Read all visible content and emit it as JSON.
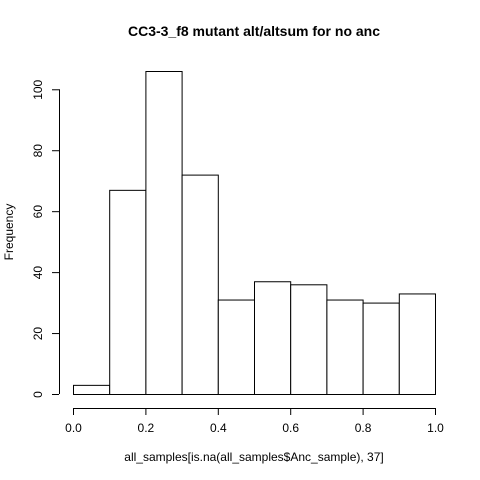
{
  "chart_data": {
    "type": "bar",
    "title": "CC3-3_f8 mutant alt/altsum for no anc",
    "xlabel": "all_samples[is.na(all_samples$Anc_sample), 37]",
    "ylabel": "Frequency",
    "bins": [
      {
        "from": 0.0,
        "to": 0.1,
        "value": 3
      },
      {
        "from": 0.1,
        "to": 0.2,
        "value": 67
      },
      {
        "from": 0.2,
        "to": 0.3,
        "value": 106
      },
      {
        "from": 0.3,
        "to": 0.4,
        "value": 72
      },
      {
        "from": 0.4,
        "to": 0.5,
        "value": 31
      },
      {
        "from": 0.5,
        "to": 0.6,
        "value": 37
      },
      {
        "from": 0.6,
        "to": 0.7,
        "value": 36
      },
      {
        "from": 0.7,
        "to": 0.8,
        "value": 31
      },
      {
        "from": 0.8,
        "to": 0.9,
        "value": 30
      },
      {
        "from": 0.9,
        "to": 1.0,
        "value": 33
      }
    ],
    "xlim": [
      0,
      1
    ],
    "ylim": [
      0,
      106
    ],
    "x_ticks": [
      0.0,
      0.2,
      0.4,
      0.6,
      0.8,
      1.0
    ],
    "x_tick_labels": [
      "0.0",
      "0.2",
      "0.4",
      "0.6",
      "0.8",
      "1.0"
    ],
    "y_ticks": [
      0,
      20,
      40,
      60,
      80,
      100
    ],
    "y_tick_labels": [
      "0",
      "20",
      "40",
      "60",
      "80",
      "100"
    ],
    "grid": false
  }
}
